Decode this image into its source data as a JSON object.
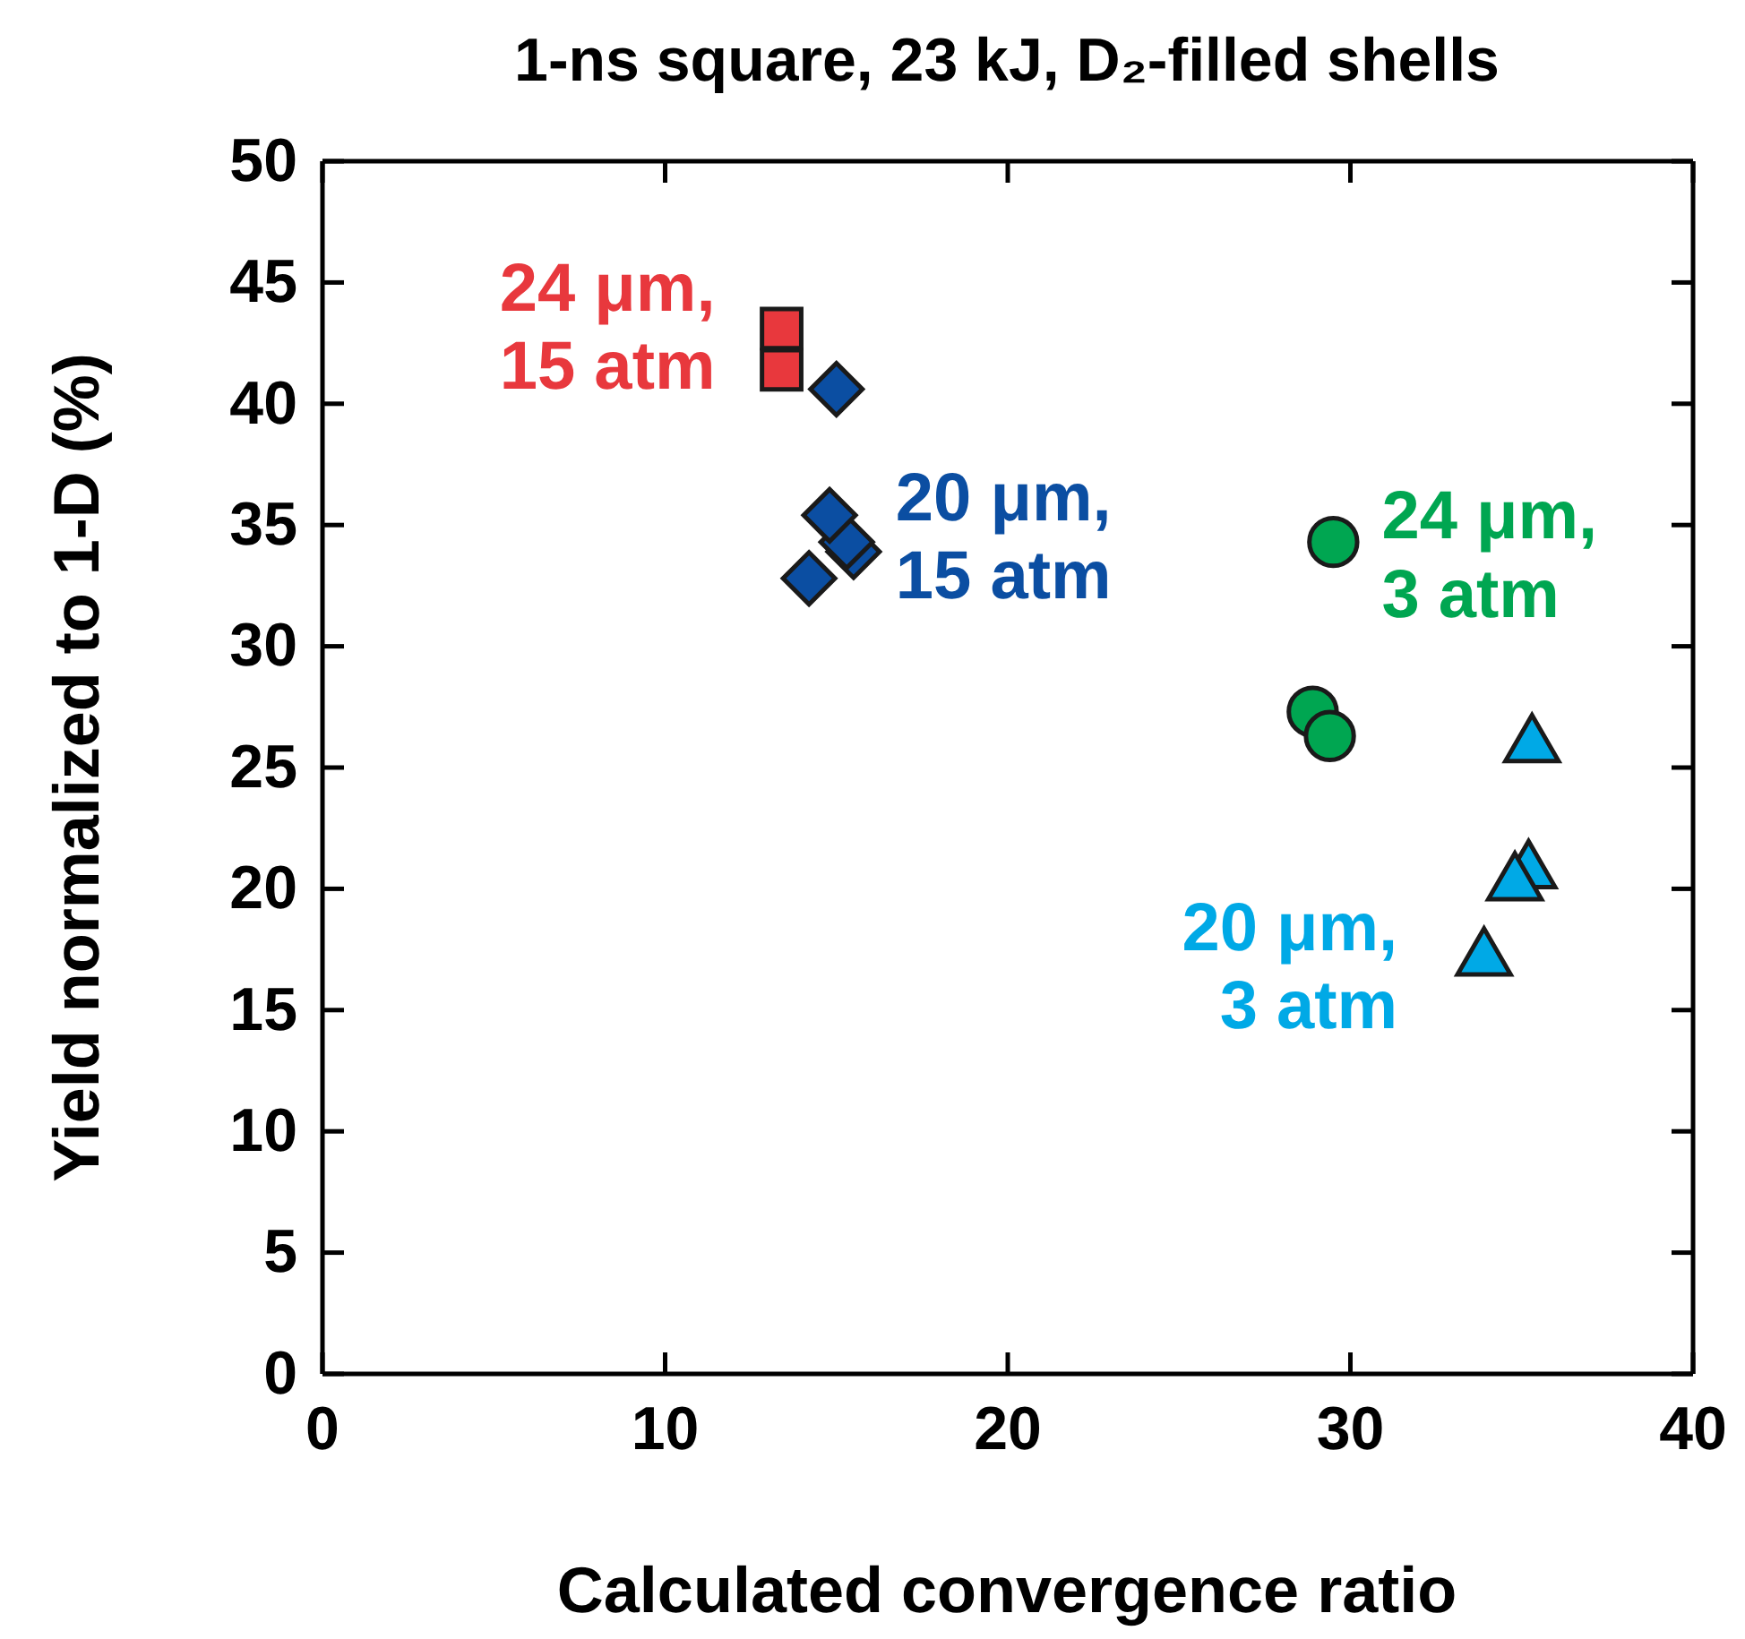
{
  "chart_data": {
    "type": "scatter",
    "title": "1-ns square, 23 kJ, D₂-filled shells",
    "xlabel": "Calculated convergence ratio",
    "ylabel": "Yield normalized to 1-D (%)",
    "xlim": [
      0,
      40
    ],
    "xticks": [
      0,
      10,
      20,
      30,
      40
    ],
    "ylim": [
      0,
      50
    ],
    "yticks": [
      0,
      5,
      10,
      15,
      20,
      25,
      30,
      35,
      40,
      45,
      50
    ],
    "grid": false,
    "legend": false,
    "series": [
      {
        "name": "24 μm, 15 atm",
        "color": "#e8383d",
        "marker": "square",
        "x": [
          13.4,
          13.4
        ],
        "values": [
          43.1,
          41.4
        ]
      },
      {
        "name": "20 μm, 15 atm",
        "color": "#0b4ea2",
        "marker": "diamond",
        "x": [
          15.0,
          15.5,
          15.3,
          14.8,
          14.2
        ],
        "values": [
          40.6,
          33.9,
          34.3,
          35.4,
          32.8
        ]
      },
      {
        "name": "24 μm, 3 atm",
        "color": "#00a651",
        "marker": "circle",
        "x": [
          29.5,
          28.9,
          29.4
        ],
        "values": [
          34.3,
          27.3,
          26.3
        ]
      },
      {
        "name": "20 μm, 3 atm",
        "color": "#00a9e6",
        "marker": "triangle",
        "x": [
          35.3,
          35.2,
          34.8,
          33.9
        ],
        "values": [
          25.9,
          20.7,
          20.2,
          17.1
        ]
      }
    ]
  }
}
